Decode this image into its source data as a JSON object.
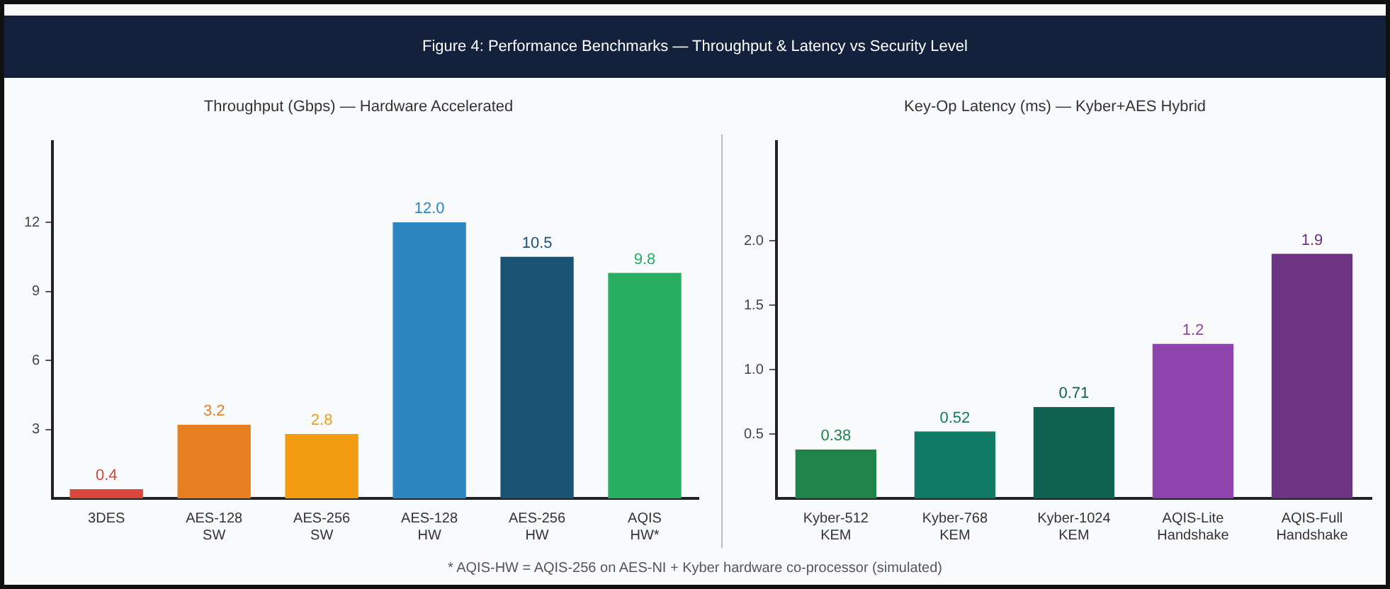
{
  "chart_data": [
    {
      "type": "bar",
      "title": "Figure 4: Performance Benchmarks — Throughput & Latency vs Security Level",
      "subtitle": "Throughput (Gbps) — Hardware Accelerated",
      "categories": [
        "3DES",
        "AES-128 SW",
        "AES-256 SW",
        "AES-128 HW",
        "AES-256 HW",
        "AQIS HW*"
      ],
      "values": [
        0.4,
        3.2,
        2.8,
        12.0,
        10.5,
        9.8
      ],
      "value_labels": [
        "0.4",
        "3.2",
        "2.8",
        "12.0",
        "10.5",
        "9.8"
      ],
      "colors": [
        "#d9473a",
        "#e67e22",
        "#f39c12",
        "#2e86c1",
        "#1a5276",
        "#27ae60"
      ],
      "ylim": [
        0,
        15.5
      ],
      "yticks": [
        3,
        6,
        9,
        12
      ],
      "grid": false,
      "legend": false,
      "annotations": [
        "* AQIS-HW = AQIS-256 on AES-NI + Kyber hardware co-processor (simulated)"
      ]
    },
    {
      "type": "bar",
      "title": "Key-Op Latency (ms) — Kyber+AES Hybrid",
      "categories": [
        "Kyber-512 KEM",
        "Kyber-768 KEM",
        "Kyber-1024 KEM",
        "AQIS-Lite Handshake",
        "AQIS-Full Handshake"
      ],
      "values": [
        0.38,
        0.52,
        0.71,
        1.2,
        1.9
      ],
      "value_labels": [
        "0.38",
        "0.52",
        "0.71",
        "1.2",
        "1.9"
      ],
      "colors": [
        "#1e8449",
        "#117a65",
        "#0e6251",
        "#8e44ad",
        "#6c3483"
      ],
      "ylim": [
        0,
        2.77
      ],
      "yticks": [
        0.5,
        {
          "value": 1,
          "label": "1.0"
        },
        1.5,
        {
          "value": 2,
          "label": "2.0"
        }
      ],
      "grid": false,
      "legend": false
    }
  ]
}
